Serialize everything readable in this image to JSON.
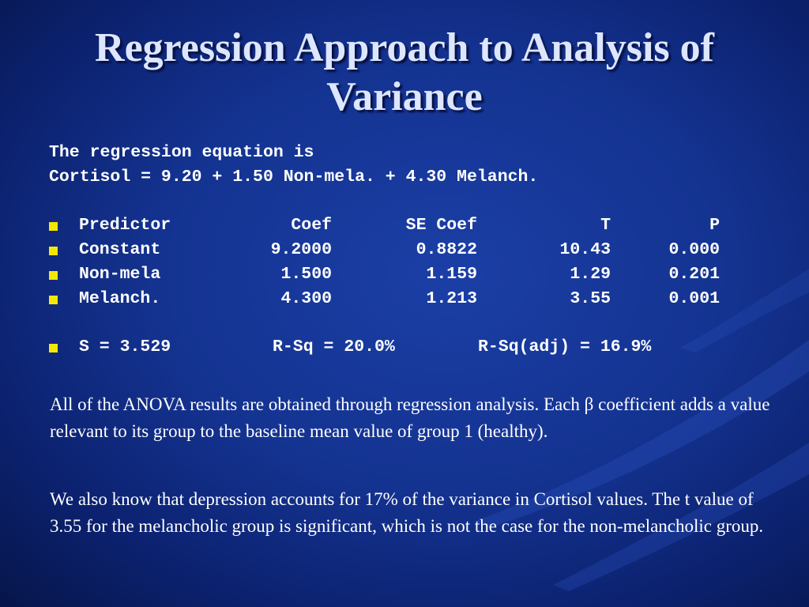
{
  "slide": {
    "title": "Regression Approach to Analysis of Variance",
    "equation_intro": "The regression equation is",
    "equation": "Cortisol = 9.20 + 1.50 Non-mela. + 4.30 Melanch.",
    "table": {
      "headers": [
        "Predictor",
        "Coef",
        "SE Coef",
        "T",
        "P"
      ],
      "rows": [
        [
          "Constant",
          "9.2000",
          "0.8822",
          "10.43",
          "0.000"
        ],
        [
          "Non-mela",
          "1.500",
          "1.159",
          "1.29",
          "0.201"
        ],
        [
          "Melanch.",
          "4.300",
          "1.213",
          "3.55",
          "0.001"
        ]
      ]
    },
    "stats": {
      "s": "S = 3.529",
      "rsq": "R-Sq = 20.0%",
      "rsq_adj": "R-Sq(adj) = 16.9%"
    },
    "paragraph1": "All of the ANOVA results are obtained through regression analysis. Each  β coefficient adds a value relevant to its group to the baseline mean value of group 1 (healthy).",
    "paragraph2": "We also know that depression accounts for 17% of the variance in Cortisol values. The t value of 3.55 for the melancholic group is significant, which is not the case for the non-melancholic group."
  },
  "colors": {
    "background": "#143391",
    "bullet": "#f5e800",
    "title": "#dde6ff"
  }
}
